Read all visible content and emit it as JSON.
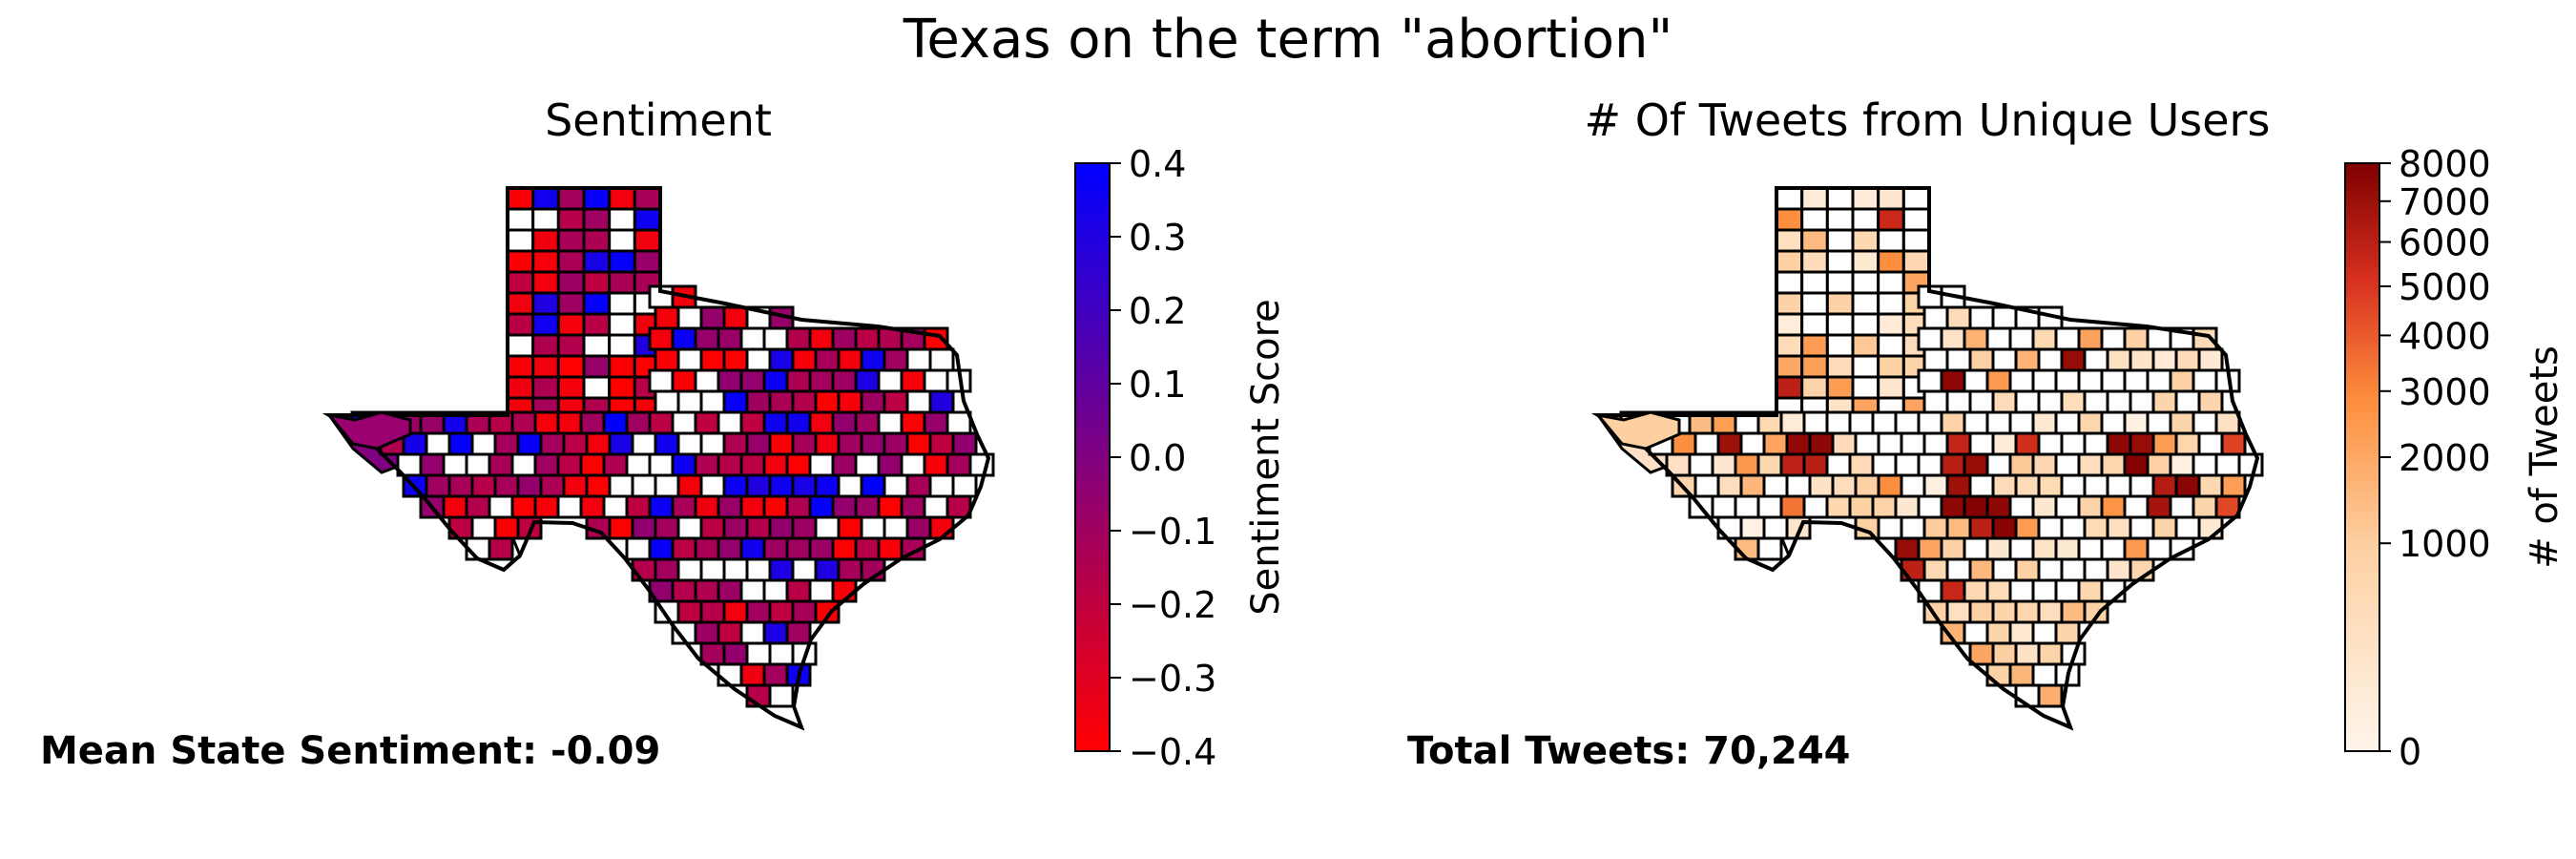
{
  "figure": {
    "title": "Texas on the term \"abortion\""
  },
  "panels": [
    {
      "title": "Sentiment",
      "footer": "Mean State Sentiment: -0.09",
      "colorbar": {
        "label": "Sentiment Score",
        "min": -0.4,
        "max": 0.4,
        "scale": "linear",
        "colors": [
          "#ff0000",
          "#800080",
          "#0000ff"
        ],
        "ticks": [
          "0.4",
          "0.3",
          "0.2",
          "0.1",
          "0.0",
          "−0.1",
          "−0.2",
          "−0.3",
          "−0.4"
        ],
        "tick_values": [
          0.4,
          0.3,
          0.2,
          0.1,
          0.0,
          -0.1,
          -0.2,
          -0.3,
          -0.4
        ]
      }
    },
    {
      "title": "# Of Tweets from Unique Users",
      "footer": "Total Tweets: 70,244",
      "colorbar": {
        "label": "# of Tweets",
        "min": 0,
        "max": 8000,
        "scale": "sqrt",
        "colors": [
          "#fff5eb",
          "#fdae6b",
          "#e6550d",
          "#7f0000"
        ],
        "ticks": [
          "8000",
          "7000",
          "6000",
          "5000",
          "4000",
          "3000",
          "2000",
          "1000",
          "0"
        ],
        "tick_values": [
          8000,
          7000,
          6000,
          5000,
          4000,
          3000,
          2000,
          1000,
          0
        ]
      }
    }
  ],
  "chart_data": {
    "type": "choropleth",
    "region": "Texas counties",
    "maps": [
      {
        "title": "Sentiment",
        "value_name": "Sentiment Score",
        "range": [
          -0.4,
          0.4
        ],
        "colormap": "red-purple-blue",
        "mean_state_sentiment": -0.09
      },
      {
        "title": "# Of Tweets from Unique Users",
        "value_name": "# of Tweets",
        "range": [
          0,
          8000
        ],
        "colormap": "orange-red",
        "total_tweets": 70244
      }
    ]
  }
}
